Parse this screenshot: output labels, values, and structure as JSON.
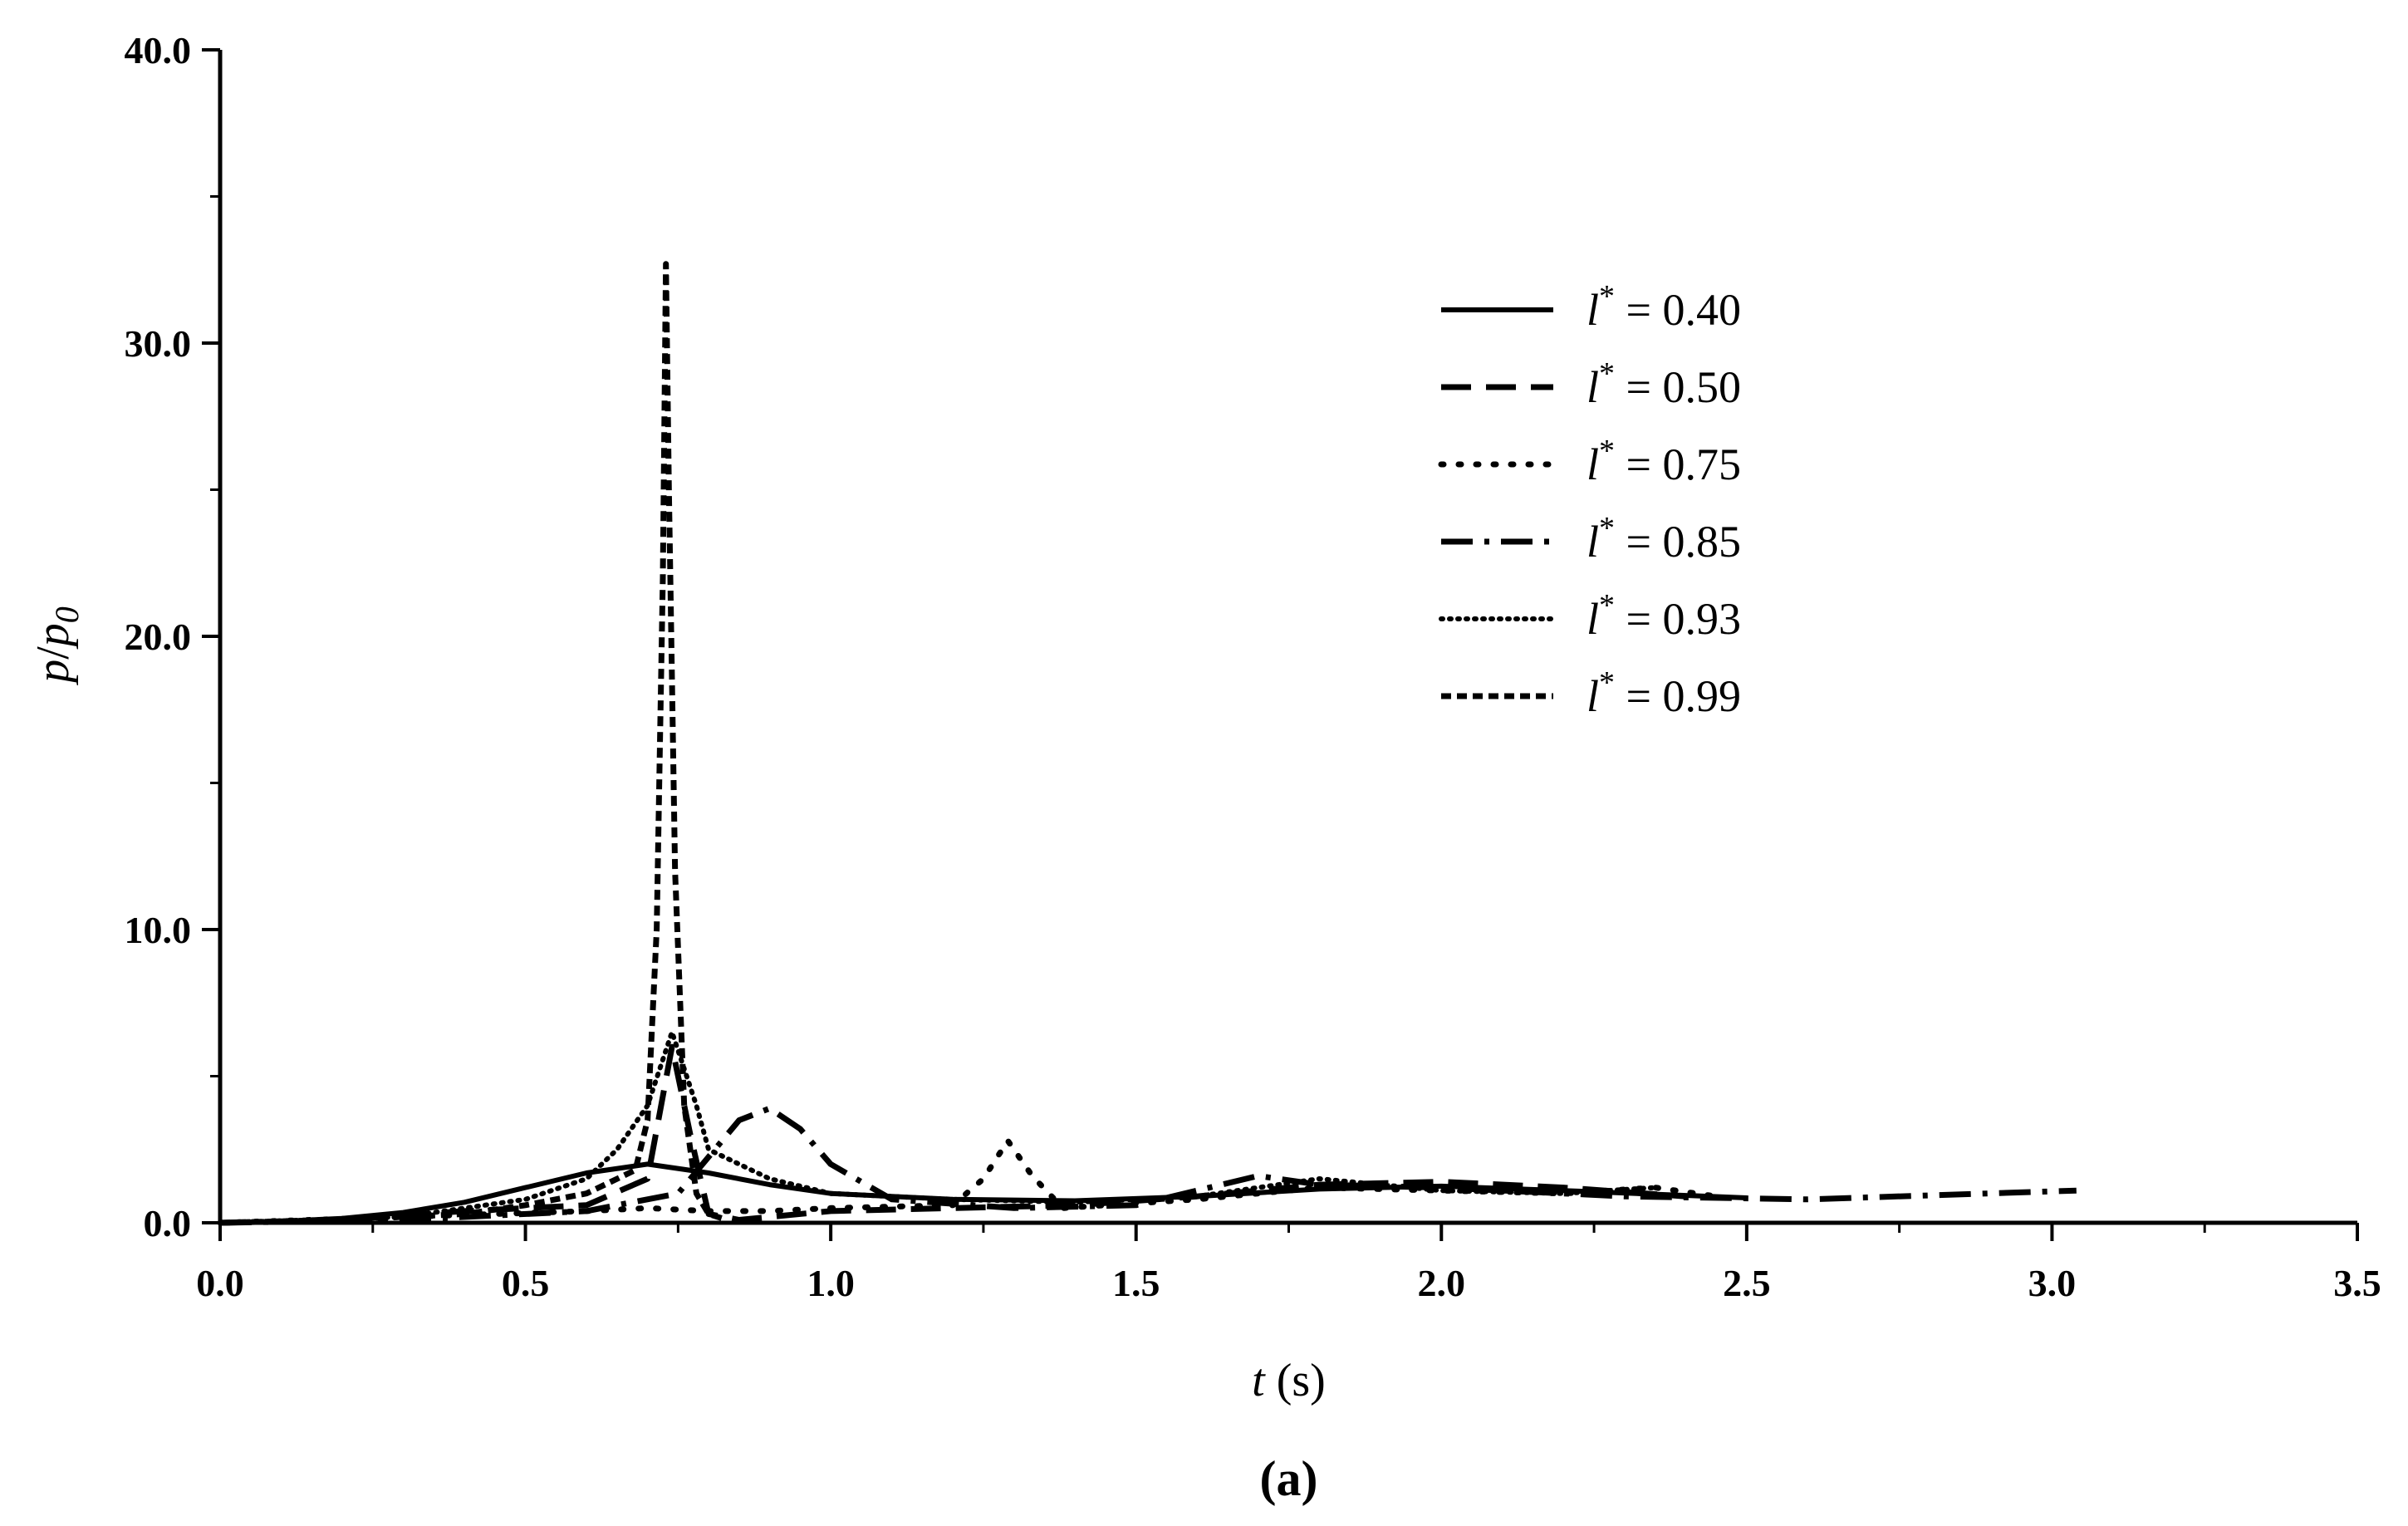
{
  "chart_data": {
    "type": "line",
    "xlabel": {
      "var": "t",
      "unit": " (s)"
    },
    "ylabel": {
      "var1": "p",
      "var2": "p",
      "sub": "0"
    },
    "xlim": [
      0,
      3.5
    ],
    "ylim": [
      0,
      40
    ],
    "xticks": [
      "0.0",
      "0.5",
      "1.0",
      "1.5",
      "2.0",
      "2.5",
      "3.0",
      "3.5"
    ],
    "yticks": [
      "0.0",
      "10.0",
      "20.0",
      "30.0",
      "40.0"
    ],
    "grid": false,
    "legend_position": "top-right",
    "legend_prefix": "l",
    "legend_sup": "*",
    "caption": "(a)",
    "series": [
      {
        "name": " = 0.40",
        "style": "solid",
        "x": [
          0,
          0.1,
          0.2,
          0.3,
          0.4,
          0.5,
          0.6,
          0.7,
          0.8,
          0.9,
          1.0,
          1.2,
          1.4,
          1.6,
          1.8,
          2.0,
          2.2,
          2.5
        ],
        "y": [
          0,
          0.05,
          0.15,
          0.35,
          0.7,
          1.2,
          1.7,
          2.0,
          1.7,
          1.3,
          1.0,
          0.8,
          0.75,
          0.9,
          1.15,
          1.25,
          1.1,
          0.85
        ]
      },
      {
        "name": " = 0.50",
        "style": "dash",
        "x": [
          0,
          0.2,
          0.4,
          0.6,
          0.7,
          0.74,
          0.77,
          0.8,
          0.85,
          0.9,
          1.0,
          1.2,
          1.4,
          1.6,
          1.8,
          2.0,
          2.2,
          2.4
        ],
        "y": [
          0,
          0.1,
          0.4,
          0.6,
          1.5,
          6.0,
          3.0,
          0.3,
          0.1,
          0.2,
          0.4,
          0.5,
          0.6,
          0.9,
          1.3,
          1.4,
          1.2,
          0.9
        ]
      },
      {
        "name": " = 0.75",
        "style": "dot",
        "x": [
          0,
          0.3,
          0.6,
          0.7,
          0.8,
          0.9,
          1.0,
          1.2,
          1.25,
          1.29,
          1.33,
          1.38,
          1.45,
          1.6,
          1.8,
          2.0,
          2.2,
          2.35,
          2.45
        ],
        "y": [
          0,
          0.2,
          0.4,
          0.5,
          0.4,
          0.4,
          0.5,
          0.6,
          1.5,
          2.8,
          1.6,
          0.5,
          0.6,
          0.8,
          1.2,
          1.1,
          1.0,
          1.2,
          0.9
        ]
      },
      {
        "name": " = 0.85",
        "style": "dashdot",
        "x": [
          0,
          0.3,
          0.6,
          0.75,
          0.85,
          0.9,
          0.95,
          1.0,
          1.1,
          1.3,
          1.5,
          1.7,
          1.8,
          2.0,
          2.3,
          2.6,
          3.04
        ],
        "y": [
          0,
          0.1,
          0.4,
          1.0,
          3.5,
          3.9,
          3.2,
          2.0,
          0.8,
          0.5,
          0.6,
          1.6,
          1.3,
          1.2,
          0.9,
          0.8,
          1.1
        ]
      },
      {
        "name": " = 0.93",
        "style": "finedot",
        "x": [
          0,
          0.3,
          0.5,
          0.6,
          0.65,
          0.7,
          0.74,
          0.78,
          0.8,
          0.9,
          1.0,
          1.2,
          1.4,
          1.6,
          1.8,
          2.0,
          2.2,
          2.35
        ],
        "y": [
          0,
          0.2,
          0.8,
          1.5,
          2.5,
          4.0,
          6.5,
          4.0,
          2.5,
          1.5,
          1.0,
          0.8,
          0.7,
          0.9,
          1.5,
          1.1,
          1.0,
          1.2
        ]
      },
      {
        "name": " = 0.99",
        "style": "shortdash",
        "x": [
          0,
          0.2,
          0.4,
          0.5,
          0.6,
          0.68,
          0.7,
          0.715,
          0.725,
          0.73,
          0.735,
          0.745,
          0.76,
          0.78,
          0.8,
          0.83
        ],
        "y": [
          0,
          0.1,
          0.3,
          0.6,
          1.0,
          1.8,
          3.5,
          10,
          22,
          32.7,
          25,
          12,
          4,
          1.0,
          0.3,
          0.1
        ]
      }
    ]
  }
}
